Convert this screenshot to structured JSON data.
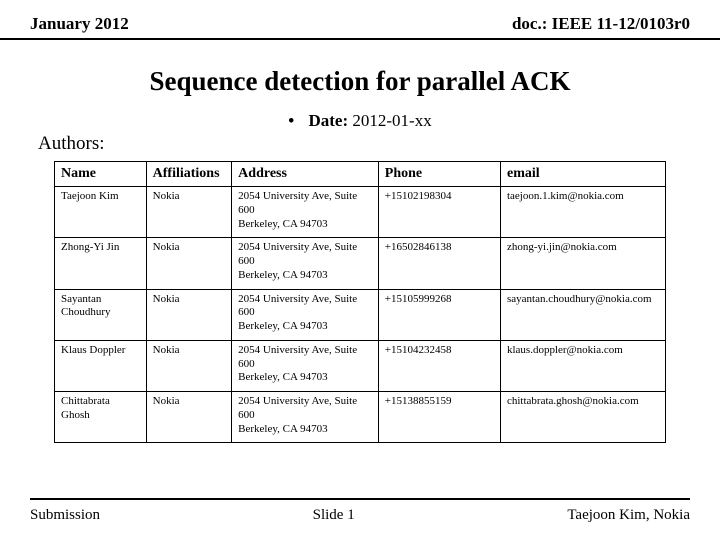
{
  "header": {
    "left": "January 2012",
    "right": "doc.: IEEE 11-12/0103r0"
  },
  "title": "Sequence detection for parallel ACK",
  "date": {
    "label": "Date:",
    "value": "2012-01-xx"
  },
  "authors_label": "Authors:",
  "table": {
    "columns": [
      "Name",
      "Affiliations",
      "Address",
      "Phone",
      "email"
    ],
    "rows": [
      [
        "Taejoon Kim",
        "Nokia",
        "2054 University Ave, Suite 600\nBerkeley, CA 94703",
        "+15102198304",
        "taejoon.1.kim@nokia.com"
      ],
      [
        "Zhong-Yi Jin",
        "Nokia",
        "2054 University Ave, Suite 600\nBerkeley, CA 94703",
        "+16502846138",
        "zhong-yi.jin@nokia.com"
      ],
      [
        "Sayantan Choudhury",
        "Nokia",
        "2054 University Ave, Suite 600\nBerkeley, CA 94703",
        "+15105999268",
        "sayantan.choudhury@nokia.com"
      ],
      [
        "Klaus Doppler",
        "Nokia",
        "2054 University Ave, Suite 600\nBerkeley, CA 94703",
        "+15104232458",
        "klaus.doppler@nokia.com"
      ],
      [
        "Chittabrata Ghosh",
        "Nokia",
        "2054 University Ave, Suite 600\nBerkeley, CA 94703",
        "+15138855159",
        "chittabrata.ghosh@nokia.com"
      ]
    ]
  },
  "footer": {
    "left": "Submission",
    "center": "Slide 1",
    "right": "Taejoon Kim, Nokia"
  }
}
